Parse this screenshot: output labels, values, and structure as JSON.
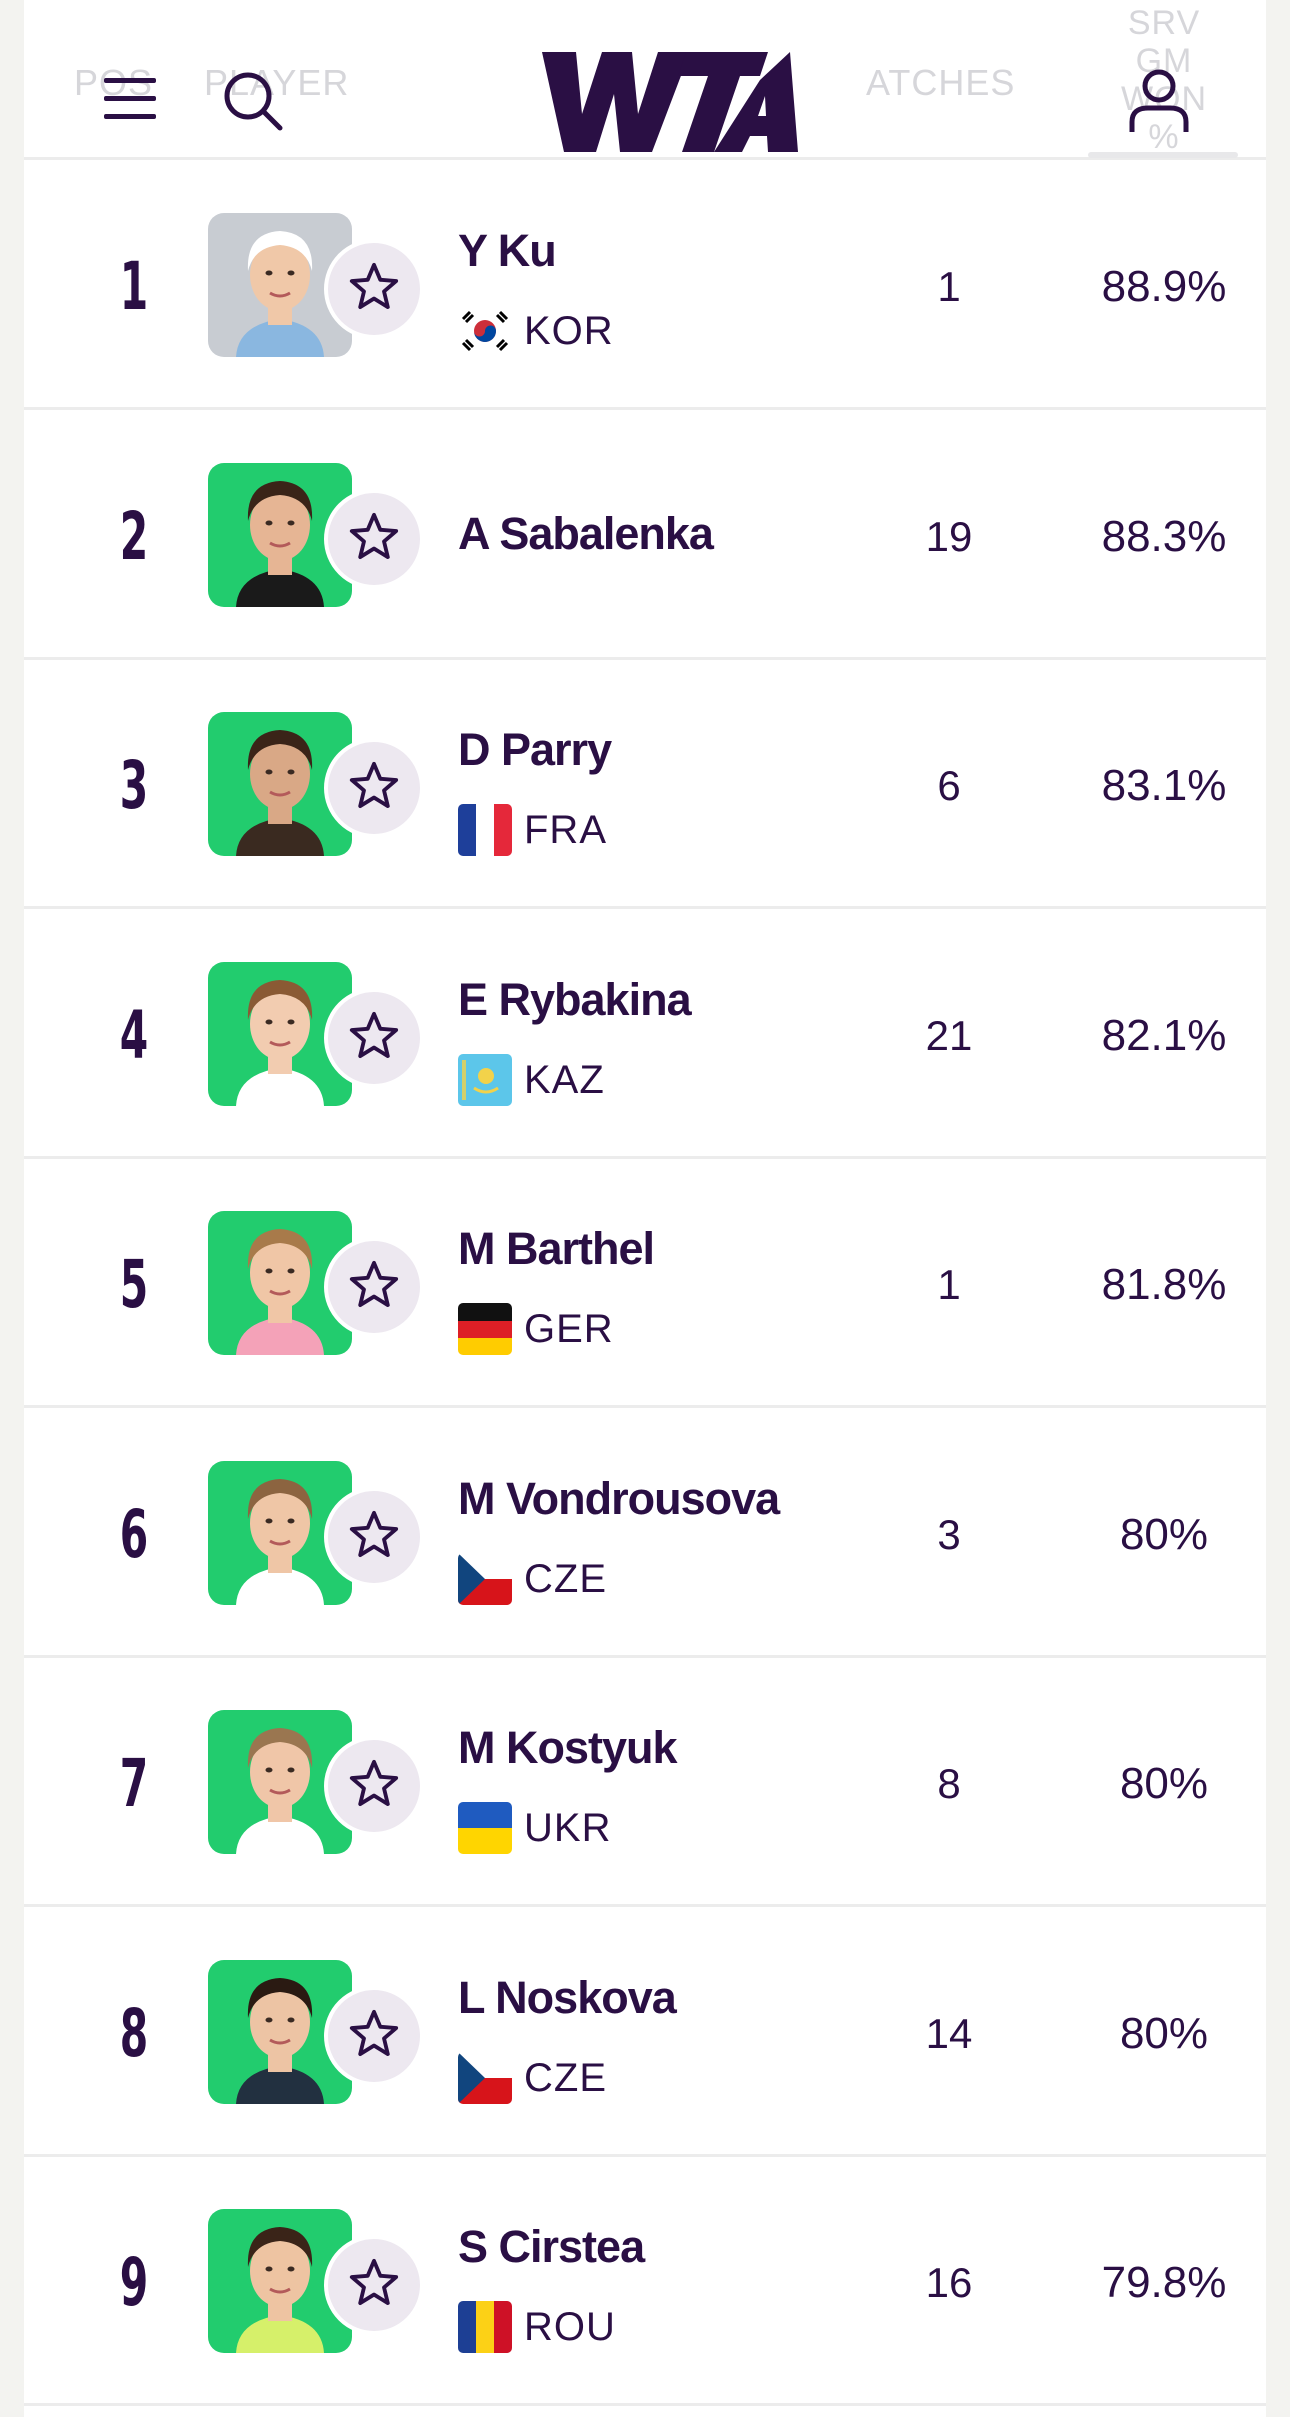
{
  "header": {
    "ghost_pos": "POS",
    "ghost_player": "PLAYER",
    "ghost_matches": "ATCHES",
    "ghost_srv": [
      "SRV",
      "GM",
      "WON",
      "%"
    ],
    "logo_text": "WTA"
  },
  "colors": {
    "brand": "#2a0f44",
    "photo_bg": "#22cc6e",
    "star_bg": "#ede8f0"
  },
  "players": [
    {
      "rank": "1",
      "name": "Y Ku",
      "country": "KOR",
      "flag": "kor",
      "matches": "1",
      "pct": "88.9%",
      "photo": "grey"
    },
    {
      "rank": "2",
      "name": "A Sabalenka",
      "country": "",
      "flag": "",
      "matches": "19",
      "pct": "88.3%",
      "photo": "green"
    },
    {
      "rank": "3",
      "name": "D Parry",
      "country": "FRA",
      "flag": "fra",
      "matches": "6",
      "pct": "83.1%",
      "photo": "green"
    },
    {
      "rank": "4",
      "name": "E Rybakina",
      "country": "KAZ",
      "flag": "kaz",
      "matches": "21",
      "pct": "82.1%",
      "photo": "green"
    },
    {
      "rank": "5",
      "name": "M Barthel",
      "country": "GER",
      "flag": "ger",
      "matches": "1",
      "pct": "81.8%",
      "photo": "green"
    },
    {
      "rank": "6",
      "name": "M Vondrousova",
      "country": "CZE",
      "flag": "cze",
      "matches": "3",
      "pct": "80%",
      "photo": "green"
    },
    {
      "rank": "7",
      "name": "M Kostyuk",
      "country": "UKR",
      "flag": "ukr",
      "matches": "8",
      "pct": "80%",
      "photo": "green"
    },
    {
      "rank": "8",
      "name": "L Noskova",
      "country": "CZE",
      "flag": "cze",
      "matches": "14",
      "pct": "80%",
      "photo": "green"
    },
    {
      "rank": "9",
      "name": "S Cirstea",
      "country": "ROU",
      "flag": "rou",
      "matches": "16",
      "pct": "79.8%",
      "photo": "green"
    }
  ]
}
